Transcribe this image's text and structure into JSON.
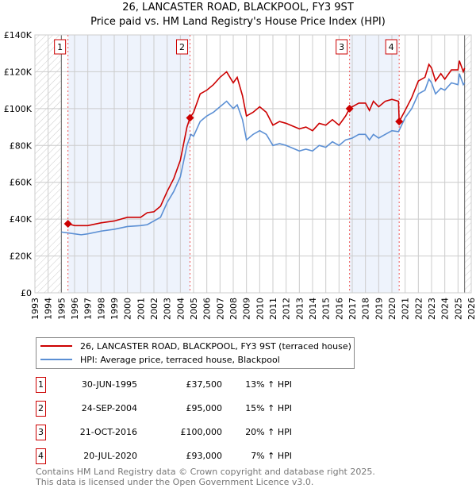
{
  "chart_data": {
    "type": "line",
    "title": "26, LANCASTER ROAD, BLACKPOOL, FY3 9ST",
    "subtitle": "Price paid vs. HM Land Registry's House Price Index (HPI)",
    "xlim": [
      1993,
      2026
    ],
    "ylim": [
      0,
      140000
    ],
    "y_ticks": [
      "£0",
      "£20K",
      "£40K",
      "£60K",
      "£80K",
      "£100K",
      "£120K",
      "£140K"
    ],
    "x_ticks": [
      "1993",
      "1994",
      "1995",
      "1996",
      "1997",
      "1998",
      "1999",
      "2000",
      "2001",
      "2002",
      "2003",
      "2004",
      "2005",
      "2006",
      "2007",
      "2008",
      "2009",
      "2010",
      "2011",
      "2012",
      "2013",
      "2014",
      "2015",
      "2016",
      "2017",
      "2018",
      "2019",
      "2020",
      "2021",
      "2022",
      "2023",
      "2024",
      "2025",
      "2026"
    ],
    "grid": true,
    "series": [
      {
        "name": "26, LANCASTER ROAD, BLACKPOOL, FY3 9ST (terraced house)",
        "color": "#cc0000",
        "x": [
          1995.5,
          1996,
          1997,
          1998,
          1999,
          2000,
          2001,
          2001.5,
          2002,
          2002.5,
          2003,
          2003.5,
          2004,
          2004.5,
          2004.73,
          2005,
          2005.5,
          2006,
          2006.5,
          2007,
          2007.5,
          2008,
          2008.3,
          2008.7,
          2009,
          2009.5,
          2010,
          2010.5,
          2011,
          2011.5,
          2012,
          2013,
          2013.5,
          2014,
          2014.5,
          2015,
          2015.5,
          2016,
          2016.5,
          2016.8,
          2017,
          2017.5,
          2018,
          2018.3,
          2018.6,
          2019,
          2019.5,
          2020,
          2020.5,
          2020.55,
          2021,
          2021.5,
          2022,
          2022.5,
          2022.8,
          2023,
          2023.3,
          2023.7,
          2024,
          2024.5,
          2025,
          2025.1,
          2025.4,
          2025.5
        ],
        "y": [
          37.5,
          36.5,
          36.5,
          38,
          39,
          41,
          41,
          43.5,
          44,
          47,
          55,
          62,
          72,
          90,
          95,
          98,
          108,
          110,
          113,
          117,
          120,
          114,
          117,
          107,
          96,
          98,
          101,
          98,
          91,
          93,
          92,
          89,
          90,
          88,
          92,
          91,
          94,
          91,
          96,
          100,
          101,
          103,
          103,
          99,
          104,
          101,
          104,
          105,
          104,
          93,
          99,
          106,
          115,
          117,
          124,
          122,
          115,
          119,
          116,
          121,
          121,
          126,
          120,
          122
        ]
      },
      {
        "name": "HPI: Average price, terraced house, Blackpool",
        "color": "#5b8fd4",
        "x": [
          1995,
          1996,
          1996.5,
          1997,
          1998,
          1999,
          2000,
          2001,
          2001.5,
          2002,
          2002.5,
          2003,
          2003.5,
          2004,
          2004.5,
          2004.8,
          2005,
          2005.5,
          2006,
          2006.5,
          2007,
          2007.5,
          2008,
          2008.3,
          2008.7,
          2009,
          2009.5,
          2010,
          2010.5,
          2011,
          2011.5,
          2012,
          2013,
          2013.5,
          2014,
          2014.5,
          2015,
          2015.5,
          2016,
          2016.5,
          2017,
          2017.5,
          2018,
          2018.3,
          2018.6,
          2019,
          2019.5,
          2020,
          2020.5,
          2021,
          2021.5,
          2022,
          2022.5,
          2022.8,
          2023,
          2023.3,
          2023.7,
          2024,
          2024.5,
          2025,
          2025.1,
          2025.4,
          2025.5
        ],
        "y": [
          33,
          32,
          31.5,
          32,
          33.5,
          34.5,
          36,
          36.5,
          37,
          39,
          41,
          49,
          55,
          63,
          80,
          86,
          85,
          93,
          96,
          98,
          101,
          104,
          100,
          102,
          94,
          83,
          86,
          88,
          86,
          80,
          81,
          80,
          77,
          78,
          77,
          80,
          79,
          82,
          80,
          83,
          84,
          86,
          86,
          83,
          86,
          84,
          86,
          88,
          87.5,
          95,
          100,
          108,
          110,
          116,
          114,
          108,
          111,
          110,
          114,
          113,
          119,
          113,
          114
        ]
      }
    ],
    "sales": [
      {
        "num": "1",
        "x": 1995.5,
        "value": 37.5,
        "date": "30-JUN-1995",
        "price": "£37,500",
        "hpi": "13% ↑ HPI"
      },
      {
        "num": "2",
        "x": 2004.73,
        "value": 95,
        "date": "24-SEP-2004",
        "price": "£95,000",
        "hpi": "15% ↑ HPI"
      },
      {
        "num": "3",
        "x": 2016.8,
        "value": 100,
        "date": "21-OCT-2016",
        "price": "£100,000",
        "hpi": "20% ↑ HPI"
      },
      {
        "num": "4",
        "x": 2020.55,
        "value": 93,
        "date": "20-JUL-2020",
        "price": "£93,000",
        "hpi": "7% ↑ HPI"
      }
    ],
    "shaded": [
      [
        1995.5,
        2004.73
      ],
      [
        2016.8,
        2020.55
      ]
    ],
    "hatched": [
      [
        1993,
        1995
      ],
      [
        2025.5,
        2026
      ]
    ]
  },
  "footer": {
    "line1": "Contains HM Land Registry data © Crown copyright and database right 2025.",
    "line2": "This data is licensed under the Open Government Licence v3.0."
  }
}
